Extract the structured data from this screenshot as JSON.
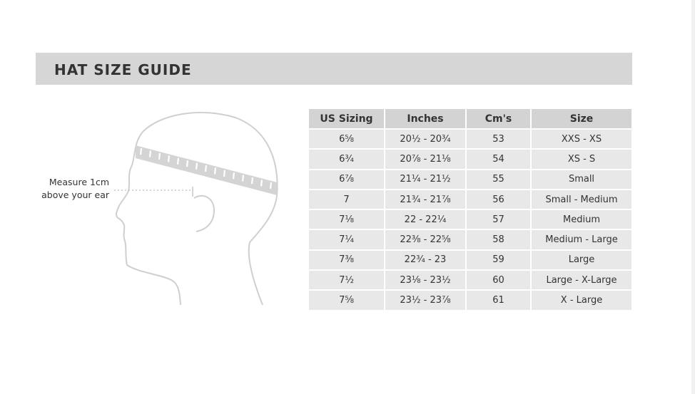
{
  "title": "HAT SIZE GUIDE",
  "illustration": {
    "icon": "head-profile-with-measuring-tape",
    "caption_line1": "Measure 1cm",
    "caption_line2": "above your ear"
  },
  "table": {
    "headers": [
      "US Sizing",
      "Inches",
      "Cm's",
      "Size"
    ],
    "rows": [
      [
        "6⅝",
        "20½ - 20¾",
        "53",
        "XXS - XS"
      ],
      [
        "6¾",
        "20⅞ - 21⅛",
        "54",
        "XS - S"
      ],
      [
        "6⅞",
        "21¼ - 21½",
        "55",
        "Small"
      ],
      [
        "7",
        "21¾ - 21⅞",
        "56",
        "Small - Medium"
      ],
      [
        "7⅛",
        "22 - 22¼",
        "57",
        "Medium"
      ],
      [
        "7¼",
        "22⅜ - 22⅝",
        "58",
        "Medium - Large"
      ],
      [
        "7⅜",
        "22¾ - 23",
        "59",
        "Large"
      ],
      [
        "7½",
        "23⅛ - 23½",
        "60",
        "Large - X-Large"
      ],
      [
        "7⅝",
        "23½ - 23⅞",
        "61",
        "X - Large"
      ]
    ]
  },
  "colors": {
    "header_bg": "#d6d6d6",
    "row_bg": "#e8e8e9",
    "text": "#333333"
  }
}
